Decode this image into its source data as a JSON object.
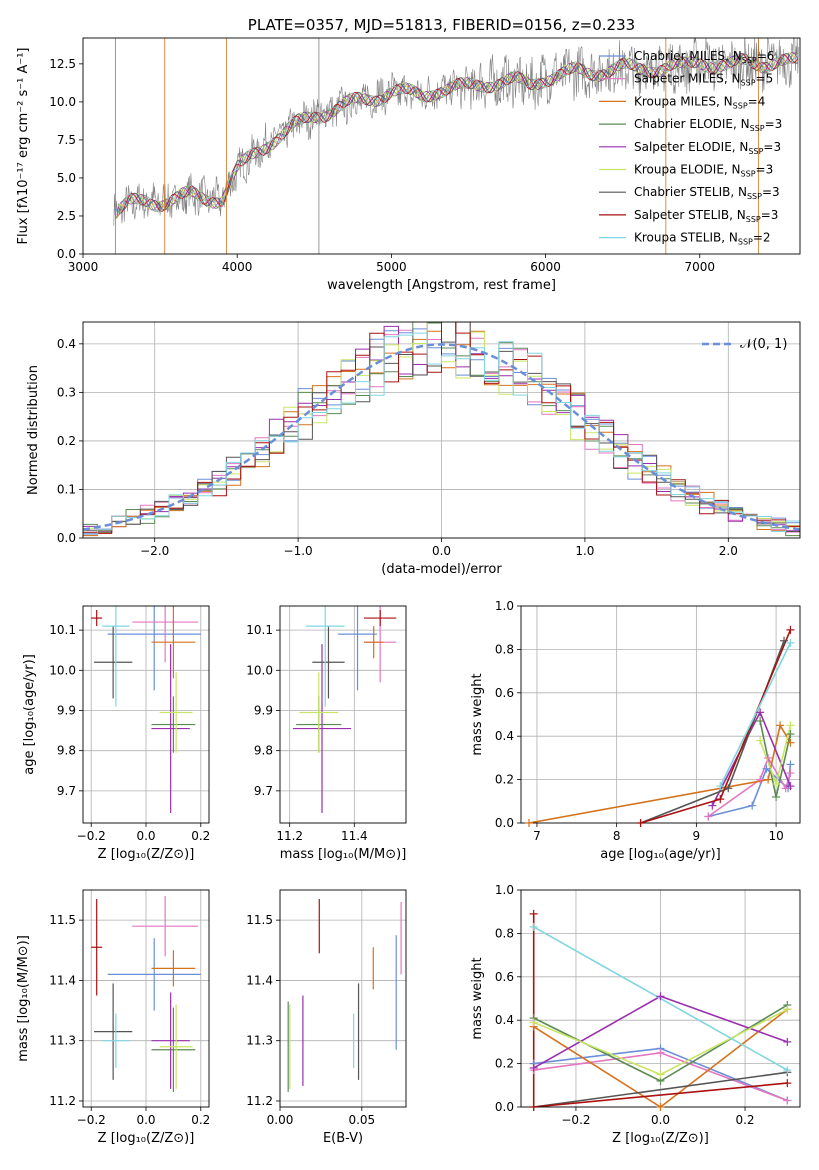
{
  "colors": [
    "#6a8fd8",
    "#e377c2",
    "#d6721c",
    "#5b8a55",
    "#9b2fae",
    "#c9e565",
    "#555555",
    "#aa1111",
    "#7fd6e0"
  ],
  "chart_data": [
    {
      "id": "spectrum",
      "type": "line",
      "title": "PLATE=0357, MJD=51813, FIBERID=0156, z=0.233",
      "xlabel": "wavelength [Angstrom, rest frame]",
      "ylabel": "Flux [fλ10⁻¹⁷ erg cm⁻² s⁻¹ A⁻¹]",
      "xlim": [
        3000,
        7650
      ],
      "ylim": [
        0,
        14.2
      ],
      "xticks": [
        "3000",
        "4000",
        "5000",
        "6000",
        "7000"
      ],
      "yticks": [
        "0.0",
        "2.5",
        "5.0",
        "7.5",
        "10.0",
        "12.5"
      ],
      "legend_position": "right",
      "legend": [
        {
          "label": "Chabrier MILES, N",
          "sub": "SSP",
          "suffix": "=6"
        },
        {
          "label": "Salpeter MILES, N",
          "sub": "SSP",
          "suffix": "=5"
        },
        {
          "label": "Kroupa MILES, N",
          "sub": "SSP",
          "suffix": "=4"
        },
        {
          "label": "Chabrier ELODIE, N",
          "sub": "SSP",
          "suffix": "=3"
        },
        {
          "label": "Salpeter ELODIE, N",
          "sub": "SSP",
          "suffix": "=3"
        },
        {
          "label": "Kroupa ELODIE, N",
          "sub": "SSP",
          "suffix": "=3"
        },
        {
          "label": "Chabrier STELIB, N",
          "sub": "SSP",
          "suffix": "=3"
        },
        {
          "label": "Salpeter STELIB, N",
          "sub": "SSP",
          "suffix": "=3"
        },
        {
          "label": "Kroupa STELIB, N",
          "sub": "SSP",
          "suffix": "=2"
        }
      ],
      "model_curve": {
        "x": [
          3200,
          3300,
          3400,
          3500,
          3600,
          3700,
          3800,
          3900,
          4000,
          4100,
          4200,
          4300,
          4400,
          4500,
          4600,
          4700,
          4800,
          4900,
          5000,
          5100,
          5200,
          5300,
          5400,
          5500,
          5600,
          5700,
          5800,
          5900,
          6000,
          6100,
          6200,
          6300,
          6400,
          6500,
          6600,
          6700,
          6800,
          6900,
          7000,
          7100,
          7200,
          7300,
          7400,
          7500,
          7600
        ],
        "y": [
          2.6,
          3.3,
          3.5,
          3.4,
          3.6,
          3.9,
          3.7,
          3.6,
          5.5,
          6.5,
          7.3,
          7.9,
          8.6,
          9.1,
          9.4,
          9.8,
          10.1,
          10.3,
          10.7,
          10.6,
          10.4,
          10.8,
          10.9,
          11.0,
          11.2,
          11.3,
          11.4,
          11.1,
          11.6,
          11.8,
          12.0,
          11.9,
          12.1,
          12.3,
          12.1,
          12.2,
          12.4,
          12.3,
          12.6,
          12.5,
          12.4,
          12.6,
          12.5,
          12.7,
          12.6
        ]
      },
      "data_amp": 1.1
    },
    {
      "id": "residuals",
      "type": "line",
      "xlabel": "(data-model)/error",
      "ylabel": "Normed distribution",
      "xlim": [
        -2.5,
        2.5
      ],
      "ylim": [
        0,
        0.445
      ],
      "xticks": [
        -2,
        -1,
        0,
        1,
        2
      ],
      "yticks": [
        0.0,
        0.1,
        0.2,
        0.3,
        0.4
      ],
      "legend": {
        "label": "𝒩(0, 1)"
      },
      "legend_position": "top-right"
    },
    {
      "id": "age_vs_Z",
      "type": "scatter",
      "xlabel": "Z [log₁₀(Z/Z⊙)]",
      "ylabel": "age  [log₁₀(age/yr)]",
      "xlim": [
        -0.23,
        0.23
      ],
      "ylim": [
        9.62,
        10.16
      ],
      "xticks": [
        -0.2,
        0.0,
        0.2
      ],
      "yticks": [
        9.7,
        9.8,
        9.9,
        10.0,
        10.1
      ],
      "points": [
        {
          "x": 0.03,
          "y": 10.09,
          "xe": 0.17,
          "ye": 0.14
        },
        {
          "x": 0.07,
          "y": 10.12,
          "xe": 0.12,
          "ye": 0.1
        },
        {
          "x": 0.1,
          "y": 10.07,
          "xe": 0.08,
          "ye": 0.09
        },
        {
          "x": 0.1,
          "y": 9.865,
          "xe": 0.08,
          "ye": 0.07
        },
        {
          "x": 0.09,
          "y": 9.855,
          "xe": 0.07,
          "ye": 0.21
        },
        {
          "x": 0.11,
          "y": 9.895,
          "xe": 0.06,
          "ye": 0.1
        },
        {
          "x": -0.12,
          "y": 10.02,
          "xe": 0.07,
          "ye": 0.09
        },
        {
          "x": -0.18,
          "y": 10.13,
          "xe": 0.02,
          "ye": 0.02
        },
        {
          "x": -0.11,
          "y": 10.11,
          "xe": 0.05,
          "ye": 0.2
        }
      ]
    },
    {
      "id": "age_vs_mass",
      "type": "scatter",
      "xlabel": "mass [log₁₀(M/M⊙)]",
      "ylabel": "",
      "xlim": [
        11.17,
        11.56
      ],
      "ylim": [
        9.62,
        10.16
      ],
      "xticks": [
        11.2,
        11.4
      ],
      "yticks": [
        9.7,
        9.8,
        9.9,
        10.0,
        10.1
      ],
      "points": [
        {
          "x": 11.41,
          "y": 10.09,
          "xe": 0.06,
          "ye": 0.14
        },
        {
          "x": 11.48,
          "y": 10.07,
          "xe": 0.05,
          "ye": 0.1
        },
        {
          "x": 11.46,
          "y": 10.07,
          "xe": 0.03,
          "ye": 0.04
        },
        {
          "x": 11.29,
          "y": 9.865,
          "xe": 0.07,
          "ye": 0.07
        },
        {
          "x": 11.3,
          "y": 9.855,
          "xe": 0.09,
          "ye": 0.21
        },
        {
          "x": 11.29,
          "y": 9.895,
          "xe": 0.06,
          "ye": 0.1
        },
        {
          "x": 11.32,
          "y": 10.02,
          "xe": 0.05,
          "ye": 0.09
        },
        {
          "x": 11.48,
          "y": 10.13,
          "xe": 0.05,
          "ye": 0.02
        },
        {
          "x": 11.31,
          "y": 10.11,
          "xe": 0.06,
          "ye": 0.2
        }
      ]
    },
    {
      "id": "massweight_vs_age",
      "type": "line",
      "xlabel": "age  [log₁₀(age/yr)]",
      "ylabel": "mass weight",
      "xlim": [
        6.8,
        10.3
      ],
      "ylim": [
        0,
        1.0
      ],
      "xticks": [
        7,
        8,
        9,
        10
      ],
      "yticks": [
        0.0,
        0.2,
        0.4,
        0.6,
        0.8,
        1.0
      ],
      "series": [
        {
          "x": [
            9.15,
            9.7,
            9.88,
            10.15,
            10.18
          ],
          "y": [
            0.03,
            0.08,
            0.25,
            0.16,
            0.27
          ]
        },
        {
          "x": [
            9.15,
            9.8,
            9.9,
            10.12,
            10.18
          ],
          "y": [
            0.03,
            0.2,
            0.3,
            0.16,
            0.23
          ]
        },
        {
          "x": [
            6.9,
            9.9,
            10.05,
            10.18
          ],
          "y": [
            0.0,
            0.2,
            0.45,
            0.37
          ]
        },
        {
          "x": [
            9.8,
            10.0,
            10.18
          ],
          "y": [
            0.47,
            0.12,
            0.41
          ]
        },
        {
          "x": [
            9.2,
            9.8,
            10.18
          ],
          "y": [
            0.08,
            0.51,
            0.17
          ]
        },
        {
          "x": [
            9.8,
            10.0,
            10.18
          ],
          "y": [
            0.38,
            0.18,
            0.45
          ]
        },
        {
          "x": [
            8.3,
            9.4,
            10.1
          ],
          "y": [
            0.0,
            0.16,
            0.84
          ]
        },
        {
          "x": [
            8.3,
            9.3,
            10.18
          ],
          "y": [
            0.0,
            0.11,
            0.89
          ]
        },
        {
          "x": [
            9.3,
            10.18
          ],
          "y": [
            0.17,
            0.83
          ]
        }
      ]
    },
    {
      "id": "mass_vs_Z",
      "type": "scatter",
      "xlabel": "Z [log₁₀(Z/Z⊙)]",
      "ylabel": "mass [log₁₀(M/M⊙)]",
      "xlim": [
        -0.23,
        0.23
      ],
      "ylim": [
        11.19,
        11.55
      ],
      "xticks": [
        -0.2,
        0.0,
        0.2
      ],
      "yticks": [
        11.2,
        11.3,
        11.4,
        11.5
      ],
      "points": [
        {
          "x": 0.03,
          "y": 11.41,
          "xe": 0.17,
          "ye": 0.06
        },
        {
          "x": 0.07,
          "y": 11.49,
          "xe": 0.12,
          "ye": 0.05
        },
        {
          "x": 0.1,
          "y": 11.42,
          "xe": 0.08,
          "ye": 0.03
        },
        {
          "x": 0.1,
          "y": 11.285,
          "xe": 0.08,
          "ye": 0.07
        },
        {
          "x": 0.09,
          "y": 11.3,
          "xe": 0.07,
          "ye": 0.08
        },
        {
          "x": 0.11,
          "y": 11.29,
          "xe": 0.06,
          "ye": 0.07
        },
        {
          "x": -0.12,
          "y": 11.315,
          "xe": 0.07,
          "ye": 0.08
        },
        {
          "x": -0.18,
          "y": 11.455,
          "xe": 0.02,
          "ye": 0.08
        },
        {
          "x": -0.11,
          "y": 11.3,
          "xe": 0.05,
          "ye": 0.045
        }
      ]
    },
    {
      "id": "mass_vs_ebv",
      "type": "scatter",
      "xlabel": "E(B-V)",
      "ylabel": "",
      "xlim": [
        0.0,
        0.077
      ],
      "ylim": [
        11.19,
        11.55
      ],
      "xticks": [
        0.0,
        0.05
      ],
      "yticks": [
        11.2,
        11.3,
        11.4,
        11.5
      ],
      "points": [
        {
          "x": 0.071,
          "y": 11.38,
          "ye": 0.095
        },
        {
          "x": 0.074,
          "y": 11.47,
          "ye": 0.06
        },
        {
          "x": 0.057,
          "y": 11.42,
          "ye": 0.035
        },
        {
          "x": 0.005,
          "y": 11.29,
          "ye": 0.075
        },
        {
          "x": 0.014,
          "y": 11.3,
          "ye": 0.075
        },
        {
          "x": 0.006,
          "y": 11.29,
          "ye": 0.07
        },
        {
          "x": 0.048,
          "y": 11.315,
          "ye": 0.08
        },
        {
          "x": 0.024,
          "y": 11.49,
          "ye": 0.045
        },
        {
          "x": 0.045,
          "y": 11.3,
          "ye": 0.045
        }
      ]
    },
    {
      "id": "massweight_vs_Z",
      "type": "line",
      "xlabel": "Z [log₁₀(Z/Z⊙)]",
      "ylabel": "mass weight",
      "xlim": [
        -0.33,
        0.33
      ],
      "ylim": [
        0,
        1.0
      ],
      "xticks": [
        -0.2,
        0.0,
        0.2
      ],
      "yticks": [
        0.0,
        0.2,
        0.4,
        0.6,
        0.8,
        1.0
      ],
      "series": [
        {
          "x": [
            -0.3,
            0.0,
            0.3
          ],
          "y": [
            0.2,
            0.27,
            0.03
          ]
        },
        {
          "x": [
            -0.3,
            0.0,
            0.3
          ],
          "y": [
            0.17,
            0.25,
            0.03
          ]
        },
        {
          "x": [
            -0.3,
            0.0,
            0.3
          ],
          "y": [
            0.37,
            0.0,
            0.45
          ]
        },
        {
          "x": [
            -0.3,
            0.0,
            0.3
          ],
          "y": [
            0.41,
            0.12,
            0.47
          ]
        },
        {
          "x": [
            -0.3,
            0.0,
            0.3
          ],
          "y": [
            0.18,
            0.51,
            0.3
          ]
        },
        {
          "x": [
            -0.3,
            0.0,
            0.3
          ],
          "y": [
            0.39,
            0.15,
            0.45
          ]
        },
        {
          "x": [
            -0.3,
            0.3
          ],
          "y": [
            0.0,
            0.16
          ]
        },
        {
          "x": [
            -0.3,
            -0.3,
            0.3
          ],
          "y": [
            0.89,
            0.0,
            0.11
          ]
        },
        {
          "x": [
            -0.3,
            0.3
          ],
          "y": [
            0.83,
            0.17
          ]
        }
      ]
    }
  ]
}
